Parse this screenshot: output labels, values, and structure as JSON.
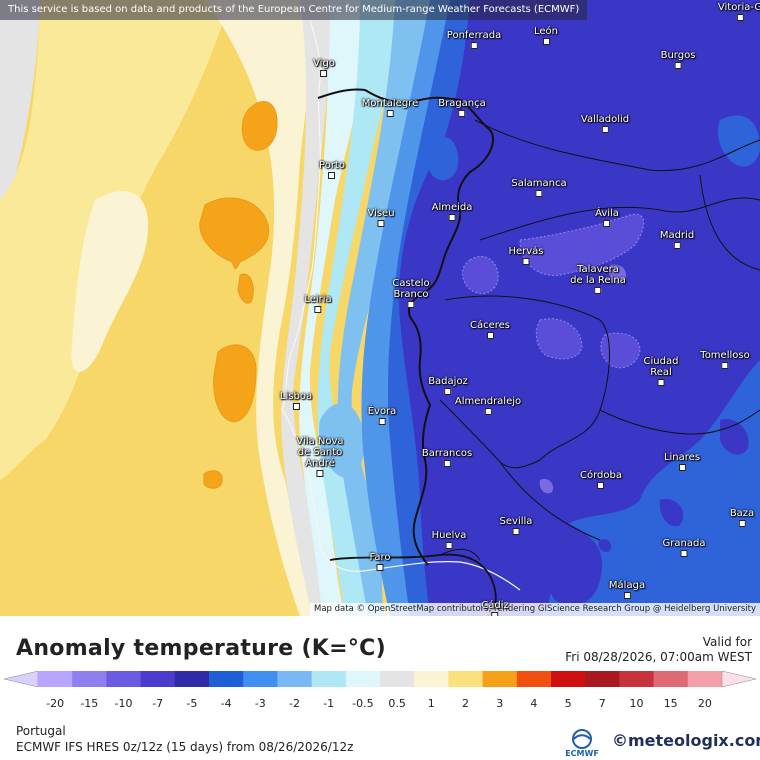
{
  "map": {
    "attribution_top": "This service is based on data and products of the European Centre for Medium-range Weather Forecasts (ECMWF)",
    "attribution_bottom": "Map data © OpenStreetMap contributors, rendering GIScience Research Group @ Heidelberg University",
    "colors": {
      "sea_light": "#fbe99a",
      "sea_yellow": "#f6d768",
      "orange": "#f5a41a",
      "pale": "#fbf4d4",
      "gray": "#e4e4e4",
      "cyan_pale": "#dff6fb",
      "cyan": "#aee8f5",
      "sky": "#7ec1f0",
      "blue": "#4f95ea",
      "royal": "#2f63d9",
      "indigo": "#3b37c6",
      "violet": "#5a4ed8",
      "lavender": "#7b6be3"
    },
    "cities": [
      {
        "label": "Ponferrada"
      },
      {
        "label": "León"
      },
      {
        "label": "Vitoria-G"
      },
      {
        "label": "Vigo"
      },
      {
        "label": "Burgos"
      },
      {
        "label": "Montalegre"
      },
      {
        "label": "Bragança"
      },
      {
        "label": "Valladolid"
      },
      {
        "label": "Porto"
      },
      {
        "label": "Salamanca"
      },
      {
        "label": "Viseu"
      },
      {
        "label": "Almeida"
      },
      {
        "label": "Ávila"
      },
      {
        "label": "Madrid"
      },
      {
        "label": "Hervás"
      },
      {
        "label": "Talavera\nde la Reina"
      },
      {
        "label": "Castelo\nBranco"
      },
      {
        "label": "Leiria"
      },
      {
        "label": "Cáceres"
      },
      {
        "label": "Ciudad\nReal"
      },
      {
        "label": "Tomelloso"
      },
      {
        "label": "Badajoz"
      },
      {
        "label": "Lisboa"
      },
      {
        "label": "Almendralejo"
      },
      {
        "label": "Évora"
      },
      {
        "label": "Vila Nova\nde Santo\nAndré"
      },
      {
        "label": "Barrancos"
      },
      {
        "label": "Linares"
      },
      {
        "label": "Córdoba"
      },
      {
        "label": "Sevilla"
      },
      {
        "label": "Baza"
      },
      {
        "label": "Huelva"
      },
      {
        "label": "Granada"
      },
      {
        "label": "Faro"
      },
      {
        "label": "Málaga"
      },
      {
        "label": "Cádiz"
      }
    ]
  },
  "legend": {
    "title": "Anomaly temperature (K=°C)",
    "valid_label": "Valid for",
    "valid_time": "Fri 08/28/2026, 07:00am WEST",
    "bins": [
      {
        "color": "#b7a6ff"
      },
      {
        "color": "#8f7ef0"
      },
      {
        "color": "#6b5be0"
      },
      {
        "color": "#4a3bcc"
      },
      {
        "color": "#2f2aa6"
      },
      {
        "color": "#1e5fd6"
      },
      {
        "color": "#3f8ef0"
      },
      {
        "color": "#79b8f4"
      },
      {
        "color": "#aee8f5"
      },
      {
        "color": "#dff6fb"
      },
      {
        "color": "#e4e4e4"
      },
      {
        "color": "#fbf4d4"
      },
      {
        "color": "#fbe17c"
      },
      {
        "color": "#f6a01a"
      },
      {
        "color": "#f0500f"
      },
      {
        "color": "#d01010"
      },
      {
        "color": "#a8181e"
      },
      {
        "color": "#c8323c"
      },
      {
        "color": "#e06a74"
      },
      {
        "color": "#f3a0aa"
      }
    ],
    "ticks": [
      "-20",
      "-15",
      "-10",
      "-7",
      "-5",
      "-4",
      "-3",
      "-2",
      "-1",
      "-0.5",
      "0.5",
      "1",
      "2",
      "3",
      "4",
      "5",
      "7",
      "10",
      "15",
      "20"
    ],
    "region": "Portugal",
    "model": "ECMWF IFS HRES 0z/12z (15 days) from  08/26/2026/12z"
  },
  "branding": {
    "ecmwf": "ECMWF",
    "meteologix": "meteologix.com"
  }
}
